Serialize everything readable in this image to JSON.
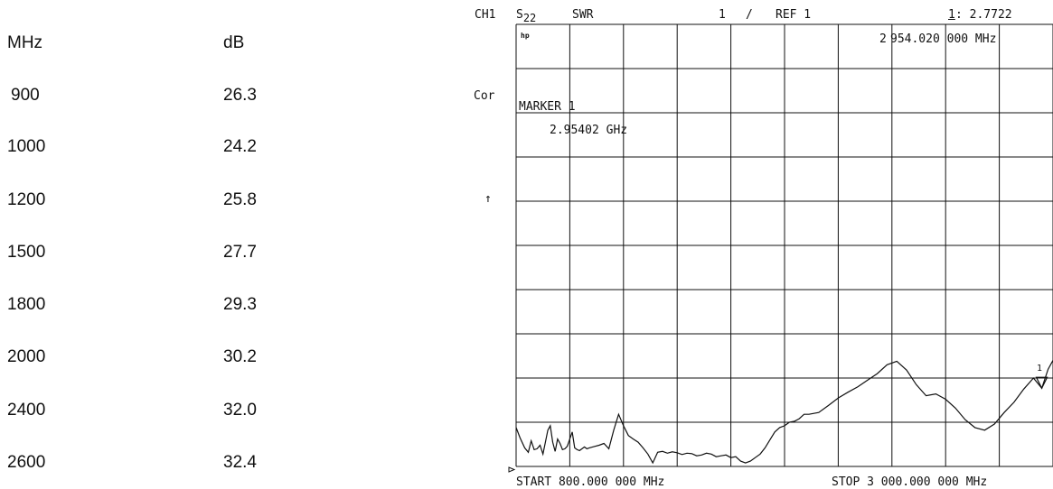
{
  "table": {
    "headers": [
      "MHz",
      "dB"
    ],
    "rows": [
      [
        "900",
        "26.3"
      ],
      [
        "1000",
        "24.2"
      ],
      [
        "1200",
        "25.8"
      ],
      [
        "1500",
        "27.7"
      ],
      [
        "1800",
        "29.3"
      ],
      [
        "2000",
        "30.2"
      ],
      [
        "2400",
        "32.0"
      ],
      [
        "2600",
        "32.4"
      ]
    ]
  },
  "instrument": {
    "channel": "CH1",
    "param_main": "S",
    "param_sub": "22",
    "format": "SWR",
    "scale_value": "1",
    "scale_sep": "/",
    "ref_label": "REF 1",
    "marker_readout_num": "1",
    "marker_readout_value": ": 2.7722",
    "hp_logo": "hp",
    "freq_readout_num": "2",
    "freq_readout_value": "954.020 000 MHz",
    "cor_label": "Cor",
    "ref_arrow": "↑",
    "marker_title": "MARKER 1",
    "marker_freq": "2.95402 GHz",
    "start_label": "START  800.000 000 MHz",
    "stop_label": "STOP 3 000.000 000 MHz",
    "marker_flag": "1"
  },
  "chart_data": {
    "type": "line",
    "title": "",
    "xlabel": "",
    "ylabel": "",
    "x_unit": "MHz",
    "xlim": [
      800,
      3000
    ],
    "ylim": [
      1,
      11
    ],
    "grid": true,
    "grid_divisions": {
      "x": 10,
      "y": 10
    },
    "series": [
      {
        "x": [
          800,
          816,
          835,
          850,
          862,
          874,
          886,
          898,
          910,
          920,
          930,
          940,
          950,
          960,
          970,
          980,
          990,
          1000,
          1010,
          1020,
          1030,
          1040,
          1050,
          1060,
          1070,
          1080,
          1090,
          1100,
          1120,
          1140,
          1160,
          1180,
          1200,
          1220,
          1240,
          1260,
          1280,
          1300,
          1320,
          1340,
          1360,
          1380,
          1400,
          1420,
          1440,
          1460,
          1480,
          1500,
          1520,
          1540,
          1560,
          1580,
          1600,
          1620,
          1640,
          1660,
          1680,
          1700,
          1720,
          1740,
          1760,
          1780,
          1800,
          1820,
          1840,
          1860,
          1880,
          1900,
          1920,
          1940,
          1960,
          1980,
          2000,
          2040,
          2080,
          2120,
          2160,
          2200,
          2240,
          2280,
          2320,
          2360,
          2400,
          2440,
          2480,
          2520,
          2560,
          2600,
          2640,
          2680,
          2720,
          2760,
          2800,
          2840,
          2880,
          2920,
          2954,
          2980,
          3000
        ],
        "values": [
          1.88,
          1.65,
          1.42,
          1.32,
          1.58,
          1.38,
          1.4,
          1.48,
          1.28,
          1.55,
          1.82,
          1.92,
          1.55,
          1.34,
          1.62,
          1.52,
          1.38,
          1.4,
          1.46,
          1.62,
          1.78,
          1.42,
          1.38,
          1.36,
          1.4,
          1.44,
          1.4,
          1.42,
          1.45,
          1.48,
          1.52,
          1.4,
          1.82,
          2.18,
          1.92,
          1.7,
          1.62,
          1.55,
          1.42,
          1.28,
          1.08,
          1.32,
          1.34,
          1.3,
          1.33,
          1.31,
          1.27,
          1.3,
          1.29,
          1.24,
          1.26,
          1.3,
          1.28,
          1.22,
          1.24,
          1.26,
          1.2,
          1.22,
          1.12,
          1.08,
          1.12,
          1.2,
          1.28,
          1.42,
          1.6,
          1.78,
          1.88,
          1.92,
          2.0,
          2.02,
          2.08,
          2.18,
          2.18,
          2.22,
          2.38,
          2.55,
          2.68,
          2.8,
          2.95,
          3.1,
          3.3,
          3.38,
          3.18,
          2.85,
          2.6,
          2.64,
          2.52,
          2.32,
          2.06,
          1.88,
          1.82,
          1.96,
          2.22,
          2.45,
          2.75,
          3.0,
          2.77,
          3.2,
          3.4
        ]
      }
    ],
    "marker": {
      "x": 2954,
      "label": "1"
    }
  }
}
